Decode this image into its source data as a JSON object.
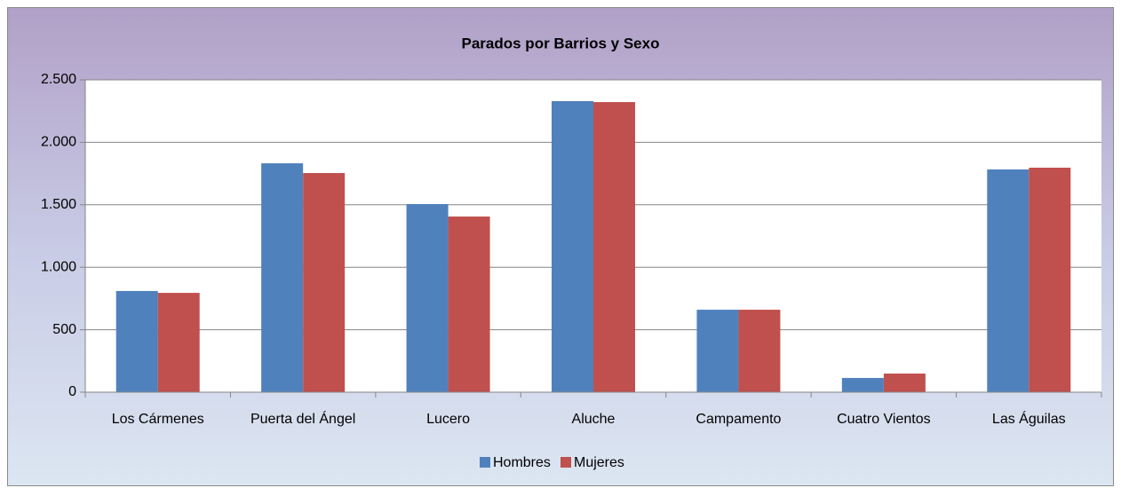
{
  "chart_data": {
    "type": "bar",
    "title": "Parados por Barrios y Sexo",
    "categories": [
      "Los Cármenes",
      "Puerta del Ángel",
      "Lucero",
      "Aluche",
      "Campamento",
      "Cuatro Vientos",
      "Las Águilas"
    ],
    "series": [
      {
        "name": "Hombres",
        "color": "#4f81bd",
        "values": [
          810,
          1832,
          1506,
          2330,
          660,
          114,
          1783
        ]
      },
      {
        "name": "Mujeres",
        "color": "#c0504d",
        "values": [
          795,
          1754,
          1406,
          2322,
          660,
          149,
          1797
        ]
      }
    ],
    "ylim": [
      0,
      2500
    ],
    "yticks": [
      0,
      500,
      {
        "value": 1000,
        "label": "1.000"
      },
      {
        "value": 1500,
        "label": "1.500"
      },
      {
        "value": 2000,
        "label": "2.000"
      },
      {
        "value": 2500,
        "label": "2.500"
      }
    ],
    "grid": true,
    "legend": "bottom"
  }
}
